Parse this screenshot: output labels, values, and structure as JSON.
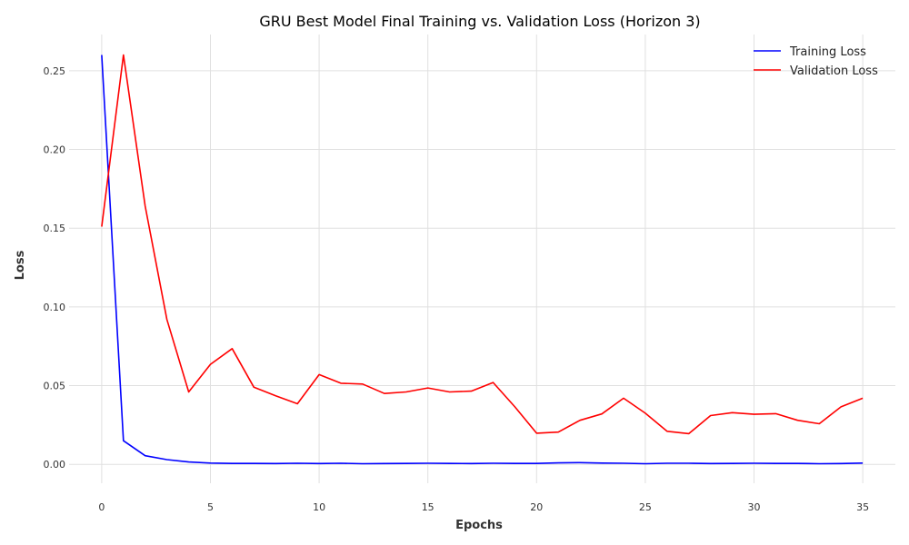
{
  "chart_data": {
    "type": "line",
    "title": "GRU Best Model Final Training vs. Validation Loss (Horizon 3)",
    "xlabel": "Epochs",
    "ylabel": "Loss",
    "xlim": [
      -1.5,
      36.5
    ],
    "ylim": [
      -0.012,
      0.273
    ],
    "xticks": [
      0,
      5,
      10,
      15,
      20,
      25,
      30,
      35
    ],
    "xtick_labels": [
      "0",
      "5",
      "10",
      "15",
      "20",
      "25",
      "30",
      "35"
    ],
    "yticks": [
      0.0,
      0.05,
      0.1,
      0.15,
      0.2,
      0.25
    ],
    "ytick_labels": [
      "0.00",
      "0.05",
      "0.10",
      "0.15",
      "0.20",
      "0.25"
    ],
    "grid": true,
    "legend": "top-right",
    "x": [
      0,
      1,
      2,
      3,
      4,
      5,
      6,
      7,
      8,
      9,
      10,
      11,
      12,
      13,
      14,
      15,
      16,
      17,
      18,
      19,
      20,
      21,
      22,
      23,
      24,
      25,
      26,
      27,
      28,
      29,
      30,
      31,
      32,
      33,
      34,
      35
    ],
    "series": [
      {
        "name": "Training Loss",
        "color": "#0000ff",
        "values": [
          0.26,
          0.015,
          0.0055,
          0.003,
          0.0015,
          0.0008,
          0.0006,
          0.0006,
          0.0005,
          0.0007,
          0.0005,
          0.0007,
          0.0004,
          0.0005,
          0.0006,
          0.0007,
          0.0006,
          0.0005,
          0.0007,
          0.0006,
          0.0006,
          0.0009,
          0.0011,
          0.0008,
          0.0007,
          0.0004,
          0.0007,
          0.0007,
          0.0005,
          0.0006,
          0.0007,
          0.0006,
          0.0006,
          0.0004,
          0.0005,
          0.0008
        ]
      },
      {
        "name": "Validation Loss",
        "color": "#ff0000",
        "values": [
          0.151,
          0.26,
          0.164,
          0.092,
          0.046,
          0.0635,
          0.0735,
          0.049,
          0.0435,
          0.0385,
          0.057,
          0.0515,
          0.051,
          0.045,
          0.046,
          0.0485,
          0.046,
          0.0465,
          0.052,
          0.0365,
          0.0198,
          0.0205,
          0.028,
          0.032,
          0.042,
          0.0325,
          0.021,
          0.0195,
          0.031,
          0.0328,
          0.0318,
          0.0322,
          0.028,
          0.0258,
          0.0365,
          0.042
        ]
      }
    ]
  }
}
